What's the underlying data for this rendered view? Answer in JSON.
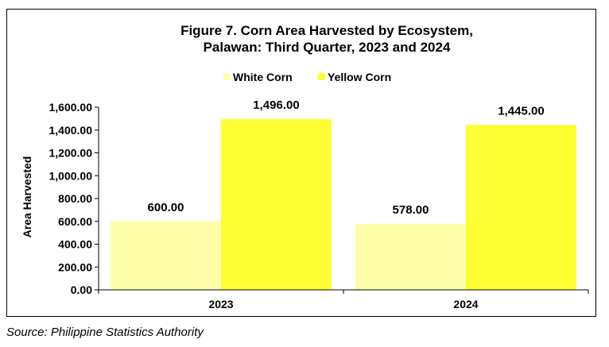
{
  "chart_data": {
    "type": "bar",
    "title": [
      "Figure 7. Corn Area Harvested by Ecosystem,",
      "Palawan:  Third Quarter, 2023 and 2024"
    ],
    "xlabel": "",
    "ylabel": "Area Harvested",
    "categories": [
      "2023",
      "2024"
    ],
    "series": [
      {
        "name": "White Corn",
        "values": [
          600.0,
          578.0
        ],
        "labels": [
          "600.00",
          "578.00"
        ],
        "color": "#FFFFAA"
      },
      {
        "name": "Yellow Corn",
        "values": [
          1496.0,
          1445.0
        ],
        "labels": [
          "1,496.00",
          "1,445.00"
        ],
        "color": "#FFFF33"
      }
    ],
    "ylim": [
      0,
      1600
    ],
    "yticks": [
      0,
      200,
      400,
      600,
      800,
      1000,
      1200,
      1400,
      1600
    ],
    "ytick_labels": [
      "0.00",
      "200.00",
      "400.00",
      "600.00",
      "800.00",
      "1,000.00",
      "1,200.00",
      "1,400.00",
      "1,600.00"
    ],
    "grid": false,
    "legend_position": "top-center"
  },
  "source": "Source: Philippine Statistics Authority"
}
